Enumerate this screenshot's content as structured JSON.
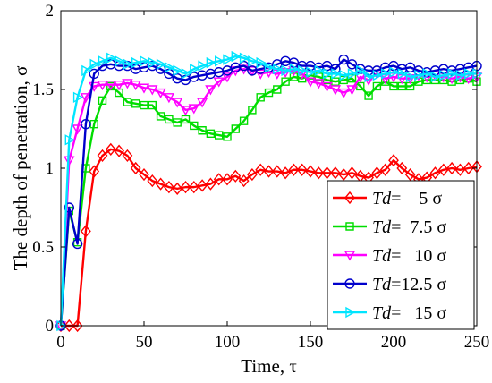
{
  "chart_data": {
    "type": "line",
    "title": "",
    "xlabel": "Time, τ",
    "ylabel": "The depth of penetration, σ",
    "xlim": [
      0,
      250
    ],
    "ylim": [
      0,
      2
    ],
    "xticks": [
      0,
      50,
      100,
      150,
      200,
      250
    ],
    "yticks": [
      0,
      0.5,
      1,
      1.5,
      2
    ],
    "ytick_labels": [
      "0",
      "0.5",
      "1",
      "1.5",
      "2"
    ],
    "grid": false,
    "legend_position": "bottom-right",
    "series": [
      {
        "name": "Td=    5 σ",
        "legend_prefix": "Td",
        "legend_rest": "=    5 σ",
        "color": "#ff0000",
        "marker": "diamond",
        "x": [
          0,
          5,
          10,
          15,
          20,
          25,
          30,
          35,
          40,
          45,
          50,
          55,
          60,
          65,
          70,
          75,
          80,
          85,
          90,
          95,
          100,
          105,
          110,
          115,
          120,
          125,
          130,
          135,
          140,
          145,
          150,
          155,
          160,
          165,
          170,
          175,
          180,
          185,
          190,
          195,
          200,
          205,
          210,
          215,
          220,
          225,
          230,
          235,
          240,
          245,
          250
        ],
        "values": [
          0,
          0,
          0,
          0.6,
          0.98,
          1.08,
          1.12,
          1.11,
          1.08,
          1.0,
          0.96,
          0.92,
          0.9,
          0.88,
          0.87,
          0.88,
          0.88,
          0.89,
          0.9,
          0.93,
          0.93,
          0.95,
          0.92,
          0.96,
          0.99,
          0.98,
          0.98,
          0.97,
          0.99,
          0.99,
          0.98,
          0.97,
          0.97,
          0.97,
          0.96,
          0.97,
          0.95,
          0.94,
          0.97,
          0.99,
          1.05,
          1.0,
          0.96,
          0.93,
          0.94,
          0.97,
          0.99,
          1.0,
          0.99,
          1.0,
          1.01
        ]
      },
      {
        "name": "Td=  7.5 σ",
        "legend_prefix": "Td",
        "legend_rest": "=  7.5 σ",
        "color": "#00dd00",
        "marker": "square",
        "x": [
          0,
          5,
          10,
          15,
          20,
          25,
          30,
          35,
          40,
          45,
          50,
          55,
          60,
          65,
          70,
          75,
          80,
          85,
          90,
          95,
          100,
          105,
          110,
          115,
          120,
          125,
          130,
          135,
          140,
          145,
          150,
          155,
          160,
          165,
          170,
          175,
          180,
          185,
          190,
          195,
          200,
          205,
          210,
          215,
          220,
          225,
          230,
          235,
          240,
          245,
          250
        ],
        "values": [
          0,
          0.73,
          0.53,
          1.0,
          1.28,
          1.43,
          1.52,
          1.48,
          1.42,
          1.41,
          1.4,
          1.4,
          1.33,
          1.31,
          1.29,
          1.31,
          1.27,
          1.24,
          1.22,
          1.21,
          1.2,
          1.25,
          1.3,
          1.37,
          1.45,
          1.48,
          1.5,
          1.55,
          1.58,
          1.57,
          1.59,
          1.58,
          1.56,
          1.55,
          1.56,
          1.57,
          1.52,
          1.46,
          1.52,
          1.55,
          1.52,
          1.52,
          1.52,
          1.55,
          1.56,
          1.56,
          1.56,
          1.55,
          1.56,
          1.57,
          1.55
        ]
      },
      {
        "name": "Td=   10 σ",
        "legend_prefix": "Td",
        "legend_rest": "=   10 σ",
        "color": "#ff00ff",
        "marker": "triangle-down",
        "x": [
          0,
          5,
          10,
          15,
          20,
          25,
          30,
          35,
          40,
          45,
          50,
          55,
          60,
          65,
          70,
          75,
          80,
          85,
          90,
          95,
          100,
          105,
          110,
          115,
          120,
          125,
          130,
          135,
          140,
          145,
          150,
          155,
          160,
          165,
          170,
          175,
          180,
          185,
          190,
          195,
          200,
          205,
          210,
          215,
          220,
          225,
          230,
          235,
          240,
          245,
          250
        ],
        "values": [
          0,
          1.05,
          1.25,
          1.45,
          1.52,
          1.53,
          1.53,
          1.53,
          1.54,
          1.53,
          1.51,
          1.5,
          1.48,
          1.45,
          1.42,
          1.37,
          1.38,
          1.42,
          1.5,
          1.55,
          1.58,
          1.62,
          1.63,
          1.62,
          1.6,
          1.61,
          1.6,
          1.61,
          1.62,
          1.6,
          1.55,
          1.54,
          1.52,
          1.5,
          1.48,
          1.5,
          1.58,
          1.56,
          1.6,
          1.57,
          1.58,
          1.57,
          1.57,
          1.59,
          1.58,
          1.59,
          1.58,
          1.57,
          1.58,
          1.57,
          1.58
        ]
      },
      {
        "name": "Td=12.5 σ",
        "legend_prefix": "Td",
        "legend_rest": "=12.5 σ",
        "color": "#0000cc",
        "marker": "circle",
        "x": [
          0,
          5,
          10,
          15,
          20,
          25,
          30,
          35,
          40,
          45,
          50,
          55,
          60,
          65,
          70,
          75,
          80,
          85,
          90,
          95,
          100,
          105,
          110,
          115,
          120,
          125,
          130,
          135,
          140,
          145,
          150,
          155,
          160,
          165,
          170,
          175,
          180,
          185,
          190,
          195,
          200,
          205,
          210,
          215,
          220,
          225,
          230,
          235,
          240,
          245,
          250
        ],
        "values": [
          0,
          0.75,
          0.52,
          1.28,
          1.6,
          1.65,
          1.66,
          1.65,
          1.65,
          1.63,
          1.64,
          1.65,
          1.63,
          1.6,
          1.57,
          1.56,
          1.58,
          1.59,
          1.6,
          1.61,
          1.62,
          1.64,
          1.65,
          1.62,
          1.63,
          1.64,
          1.66,
          1.68,
          1.67,
          1.65,
          1.65,
          1.64,
          1.65,
          1.63,
          1.69,
          1.66,
          1.63,
          1.62,
          1.62,
          1.64,
          1.65,
          1.63,
          1.64,
          1.62,
          1.61,
          1.62,
          1.63,
          1.62,
          1.63,
          1.64,
          1.65
        ]
      },
      {
        "name": "Td=   15 σ",
        "legend_prefix": "Td",
        "legend_rest": "=   15 σ",
        "color": "#00e5ff",
        "marker": "triangle-right",
        "x": [
          0,
          5,
          10,
          15,
          20,
          25,
          30,
          35,
          40,
          45,
          50,
          55,
          60,
          65,
          70,
          75,
          80,
          85,
          90,
          95,
          100,
          105,
          110,
          115,
          120,
          125,
          130,
          135,
          140,
          145,
          150,
          155,
          160,
          165,
          170,
          175,
          180,
          185,
          190,
          195,
          200,
          205,
          210,
          215,
          220,
          225,
          230,
          235,
          240,
          245,
          250
        ],
        "values": [
          0,
          1.18,
          1.45,
          1.62,
          1.66,
          1.68,
          1.7,
          1.68,
          1.66,
          1.67,
          1.68,
          1.67,
          1.66,
          1.64,
          1.62,
          1.6,
          1.63,
          1.65,
          1.67,
          1.68,
          1.69,
          1.71,
          1.7,
          1.68,
          1.67,
          1.64,
          1.63,
          1.62,
          1.63,
          1.62,
          1.61,
          1.62,
          1.6,
          1.6,
          1.59,
          1.6,
          1.62,
          1.58,
          1.59,
          1.6,
          1.61,
          1.6,
          1.58,
          1.59,
          1.6,
          1.58,
          1.59,
          1.6,
          1.59,
          1.6,
          1.6
        ]
      }
    ]
  }
}
